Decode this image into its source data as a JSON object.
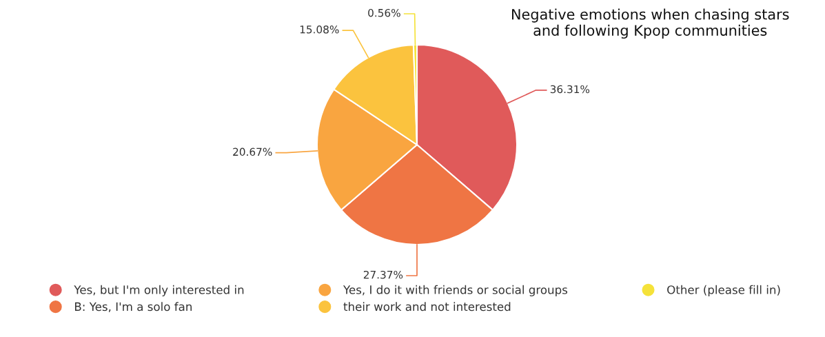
{
  "chart_data": {
    "type": "pie",
    "title": "Negative emotions when chasing stars\nand following Kpop communities",
    "categories": [
      "Yes, but I'm only interested in",
      "B: Yes, I'm a solo fan",
      "Yes, I do it with friends or social groups",
      "their work and not interested",
      "Other (please fill in)"
    ],
    "values": [
      36.31,
      27.37,
      20.67,
      15.08,
      0.56
    ],
    "value_labels": [
      "36.31%",
      "27.37%",
      "20.67%",
      "15.08%",
      "0.56%"
    ],
    "colors": [
      "#e05a5a",
      "#ef7544",
      "#f9a540",
      "#fbc33e",
      "#f5e23a"
    ],
    "legend": "bottom"
  }
}
